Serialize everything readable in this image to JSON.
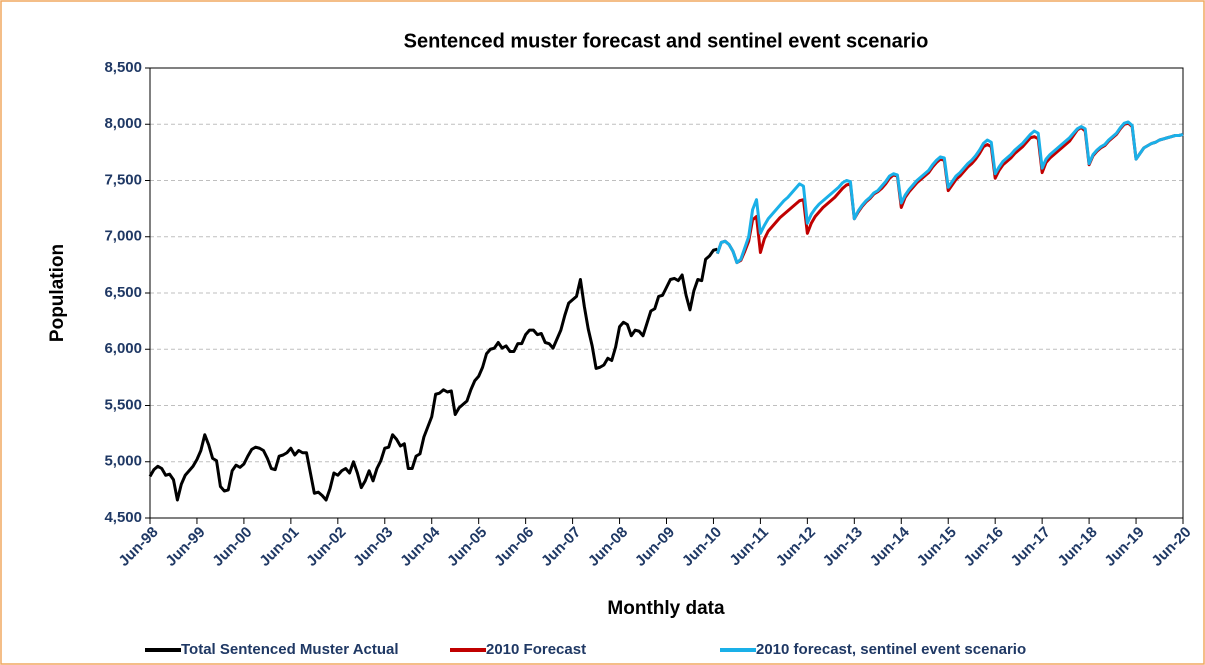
{
  "chart_data": {
    "type": "line",
    "title": "Sentenced muster  forecast and sentinel event scenario",
    "x_label": "Monthly data",
    "y_label": "Population",
    "ylim": [
      4500,
      8500
    ],
    "yticks": [
      {
        "value": 4500,
        "label": "4,500"
      },
      {
        "value": 5000,
        "label": "5,000"
      },
      {
        "value": 5500,
        "label": "5,500"
      },
      {
        "value": 6000,
        "label": "6,000"
      },
      {
        "value": 6500,
        "label": "6,500"
      },
      {
        "value": 7000,
        "label": "7,000"
      },
      {
        "value": 7500,
        "label": "7,500"
      },
      {
        "value": 8000,
        "label": "8,000"
      },
      {
        "value": 8500,
        "label": "8,500"
      }
    ],
    "grid": true,
    "legend": "bottom",
    "categories": [
      "Jun-98",
      null,
      null,
      null,
      null,
      null,
      null,
      null,
      null,
      null,
      null,
      null,
      "Jun-99",
      null,
      null,
      null,
      null,
      null,
      null,
      null,
      null,
      null,
      null,
      null,
      "Jun-00",
      null,
      null,
      null,
      null,
      null,
      null,
      null,
      null,
      null,
      null,
      null,
      "Jun-01",
      null,
      null,
      null,
      null,
      null,
      null,
      null,
      null,
      null,
      null,
      null,
      "Jun-02",
      null,
      null,
      null,
      null,
      null,
      null,
      null,
      null,
      null,
      null,
      null,
      "Jun-03",
      null,
      null,
      null,
      null,
      null,
      null,
      null,
      null,
      null,
      null,
      null,
      "Jun-04",
      null,
      null,
      null,
      null,
      null,
      null,
      null,
      null,
      null,
      null,
      null,
      "Jun-05",
      null,
      null,
      null,
      null,
      null,
      null,
      null,
      null,
      null,
      null,
      null,
      "Jun-06",
      null,
      null,
      null,
      null,
      null,
      null,
      null,
      null,
      null,
      null,
      null,
      "Jun-07",
      null,
      null,
      null,
      null,
      null,
      null,
      null,
      null,
      null,
      null,
      null,
      "Jun-08",
      null,
      null,
      null,
      null,
      null,
      null,
      null,
      null,
      null,
      null,
      null,
      "Jun-09",
      null,
      null,
      null,
      null,
      null,
      null,
      null,
      null,
      null,
      null,
      null,
      "Jun-10",
      null,
      null,
      null,
      null,
      null,
      null,
      null,
      null,
      null,
      null,
      null,
      "Jun-11",
      null,
      null,
      null,
      null,
      null,
      null,
      null,
      null,
      null,
      null,
      null,
      "Jun-12",
      null,
      null,
      null,
      null,
      null,
      null,
      null,
      null,
      null,
      null,
      null,
      "Jun-13",
      null,
      null,
      null,
      null,
      null,
      null,
      null,
      null,
      null,
      null,
      null,
      "Jun-14",
      null,
      null,
      null,
      null,
      null,
      null,
      null,
      null,
      null,
      null,
      null,
      "Jun-15",
      null,
      null,
      null,
      null,
      null,
      null,
      null,
      null,
      null,
      null,
      null,
      "Jun-16",
      null,
      null,
      null,
      null,
      null,
      null,
      null,
      null,
      null,
      null,
      null,
      "Jun-17",
      null,
      null,
      null,
      null,
      null,
      null,
      null,
      null,
      null,
      null,
      null,
      "Jun-18",
      null,
      null,
      null,
      null,
      null,
      null,
      null,
      null,
      null,
      null,
      null,
      "Jun-19",
      null,
      null,
      null,
      null,
      null,
      null,
      null,
      null,
      null,
      null,
      null,
      "Jun-20"
    ],
    "series": [
      {
        "name": "Total Sentenced Muster Actual",
        "color": "#000000",
        "values": [
          4870,
          4930,
          4960,
          4940,
          4880,
          4890,
          4840,
          4660,
          4800,
          4880,
          4920,
          4960,
          5020,
          5100,
          5240,
          5150,
          5030,
          5010,
          4780,
          4740,
          4750,
          4920,
          4970,
          4950,
          4980,
          5050,
          5110,
          5130,
          5120,
          5100,
          5030,
          4940,
          4930,
          5050,
          5060,
          5080,
          5120,
          5060,
          5100,
          5080,
          5080,
          4900,
          4720,
          4730,
          4700,
          4660,
          4760,
          4900,
          4880,
          4920,
          4940,
          4900,
          5000,
          4900,
          4770,
          4830,
          4920,
          4830,
          4940,
          5010,
          5120,
          5130,
          5240,
          5200,
          5140,
          5160,
          4940,
          4940,
          5050,
          5070,
          5220,
          5310,
          5400,
          5600,
          5610,
          5640,
          5620,
          5630,
          5420,
          5480,
          5510,
          5540,
          5640,
          5720,
          5760,
          5840,
          5960,
          6000,
          6010,
          6060,
          6010,
          6030,
          5980,
          5980,
          6050,
          6050,
          6130,
          6170,
          6170,
          6130,
          6140,
          6060,
          6050,
          6010,
          6090,
          6170,
          6300,
          6410,
          6440,
          6470,
          6620,
          6380,
          6180,
          6030,
          5830,
          5840,
          5860,
          5920,
          5900,
          6020,
          6200,
          6240,
          6220,
          6120,
          6170,
          6160,
          6120,
          6230,
          6340,
          6360,
          6470,
          6480,
          6550,
          6620,
          6630,
          6610,
          6660,
          6480,
          6350,
          6520,
          6620,
          6610,
          6800,
          6830,
          6880,
          6890,
          null,
          null,
          null,
          null,
          null,
          null,
          null,
          null,
          null,
          null,
          null,
          null,
          null,
          null,
          null,
          null,
          null,
          null,
          null,
          null,
          null,
          null,
          null,
          null,
          null,
          null,
          null,
          null,
          null,
          null,
          null,
          null,
          null,
          null,
          null,
          null,
          null,
          null,
          null,
          null,
          null,
          null,
          null,
          null,
          null,
          null,
          null,
          null,
          null,
          null,
          null,
          null,
          null,
          null,
          null,
          null,
          null,
          null,
          null,
          null,
          null,
          null,
          null,
          null,
          null,
          null,
          null,
          null,
          null,
          null,
          null,
          null,
          null,
          null,
          null,
          null,
          null,
          null,
          null,
          null,
          null,
          null,
          null,
          null,
          null,
          null,
          null,
          null,
          null,
          null,
          null,
          null,
          null,
          null,
          null,
          null,
          null,
          null,
          null,
          null,
          null,
          null,
          null,
          null,
          null,
          null,
          null,
          null,
          null,
          null,
          null,
          null,
          null,
          null,
          null,
          null,
          null,
          null,
          null
        ]
      },
      {
        "name": "2010 Forecast",
        "color": "#c00000",
        "values": [
          null,
          null,
          null,
          null,
          null,
          null,
          null,
          null,
          null,
          null,
          null,
          null,
          null,
          null,
          null,
          null,
          null,
          null,
          null,
          null,
          null,
          null,
          null,
          null,
          null,
          null,
          null,
          null,
          null,
          null,
          null,
          null,
          null,
          null,
          null,
          null,
          null,
          null,
          null,
          null,
          null,
          null,
          null,
          null,
          null,
          null,
          null,
          null,
          null,
          null,
          null,
          null,
          null,
          null,
          null,
          null,
          null,
          null,
          null,
          null,
          null,
          null,
          null,
          null,
          null,
          null,
          null,
          null,
          null,
          null,
          null,
          null,
          null,
          null,
          null,
          null,
          null,
          null,
          null,
          null,
          null,
          null,
          null,
          null,
          null,
          null,
          null,
          null,
          null,
          null,
          null,
          null,
          null,
          null,
          null,
          null,
          null,
          null,
          null,
          null,
          null,
          null,
          null,
          null,
          null,
          null,
          null,
          null,
          null,
          null,
          null,
          null,
          null,
          null,
          null,
          null,
          null,
          null,
          null,
          null,
          null,
          null,
          null,
          null,
          null,
          null,
          null,
          null,
          null,
          null,
          null,
          null,
          null,
          null,
          null,
          null,
          null,
          null,
          null,
          null,
          null,
          null,
          null,
          null,
          null,
          6850,
          6950,
          6960,
          6930,
          6870,
          6770,
          6790,
          6870,
          6960,
          7150,
          7180,
          6860,
          6980,
          7050,
          7090,
          7130,
          7170,
          7200,
          7230,
          7260,
          7290,
          7320,
          7330,
          7030,
          7120,
          7180,
          7220,
          7260,
          7290,
          7320,
          7350,
          7390,
          7430,
          7460,
          7470,
          7160,
          7220,
          7270,
          7310,
          7340,
          7380,
          7400,
          7430,
          7470,
          7520,
          7550,
          7540,
          7260,
          7350,
          7400,
          7440,
          7480,
          7510,
          7540,
          7570,
          7620,
          7660,
          7690,
          7680,
          7410,
          7460,
          7510,
          7540,
          7580,
          7620,
          7650,
          7690,
          7740,
          7800,
          7820,
          7800,
          7520,
          7590,
          7640,
          7670,
          7700,
          7740,
          7770,
          7800,
          7840,
          7880,
          7890,
          7870,
          7570,
          7660,
          7700,
          7730,
          7760,
          7790,
          7820,
          7850,
          7900,
          7950,
          7970,
          7940,
          7640,
          7720,
          7760,
          7790,
          7810,
          7850,
          7880,
          7910,
          7960,
          8000,
          8010,
          7980,
          7690,
          7740,
          7790,
          7810,
          7830,
          7840,
          7860,
          7870,
          7880,
          7890,
          7900,
          7900,
          7910
        ]
      },
      {
        "name": "2010 forecast, sentinel event scenario",
        "color": "#1ab0e8",
        "values": [
          null,
          null,
          null,
          null,
          null,
          null,
          null,
          null,
          null,
          null,
          null,
          null,
          null,
          null,
          null,
          null,
          null,
          null,
          null,
          null,
          null,
          null,
          null,
          null,
          null,
          null,
          null,
          null,
          null,
          null,
          null,
          null,
          null,
          null,
          null,
          null,
          null,
          null,
          null,
          null,
          null,
          null,
          null,
          null,
          null,
          null,
          null,
          null,
          null,
          null,
          null,
          null,
          null,
          null,
          null,
          null,
          null,
          null,
          null,
          null,
          null,
          null,
          null,
          null,
          null,
          null,
          null,
          null,
          null,
          null,
          null,
          null,
          null,
          null,
          null,
          null,
          null,
          null,
          null,
          null,
          null,
          null,
          null,
          null,
          null,
          null,
          null,
          null,
          null,
          null,
          null,
          null,
          null,
          null,
          null,
          null,
          null,
          null,
          null,
          null,
          null,
          null,
          null,
          null,
          null,
          null,
          null,
          null,
          null,
          null,
          null,
          null,
          null,
          null,
          null,
          null,
          null,
          null,
          null,
          null,
          null,
          null,
          null,
          null,
          null,
          null,
          null,
          null,
          null,
          null,
          null,
          null,
          null,
          null,
          null,
          null,
          null,
          null,
          null,
          null,
          null,
          null,
          null,
          null,
          null,
          6850,
          6950,
          6960,
          6930,
          6870,
          6770,
          6800,
          6900,
          7000,
          7240,
          7330,
          7030,
          7100,
          7160,
          7200,
          7240,
          7280,
          7320,
          7350,
          7390,
          7430,
          7470,
          7450,
          7120,
          7200,
          7250,
          7290,
          7320,
          7350,
          7380,
          7410,
          7440,
          7480,
          7500,
          7490,
          7160,
          7230,
          7280,
          7320,
          7350,
          7390,
          7410,
          7450,
          7490,
          7540,
          7560,
          7550,
          7300,
          7370,
          7420,
          7460,
          7500,
          7530,
          7560,
          7590,
          7640,
          7680,
          7710,
          7700,
          7440,
          7490,
          7540,
          7570,
          7610,
          7650,
          7680,
          7720,
          7770,
          7830,
          7860,
          7840,
          7560,
          7620,
          7670,
          7700,
          7730,
          7770,
          7800,
          7830,
          7870,
          7910,
          7940,
          7920,
          7610,
          7690,
          7730,
          7760,
          7790,
          7820,
          7850,
          7880,
          7920,
          7960,
          7980,
          7960,
          7650,
          7730,
          7770,
          7800,
          7820,
          7860,
          7890,
          7920,
          7970,
          8010,
          8020,
          7990,
          7690,
          7740,
          7790,
          7810,
          7830,
          7840,
          7860,
          7870,
          7880,
          7890,
          7900,
          7900,
          7910
        ]
      }
    ]
  }
}
